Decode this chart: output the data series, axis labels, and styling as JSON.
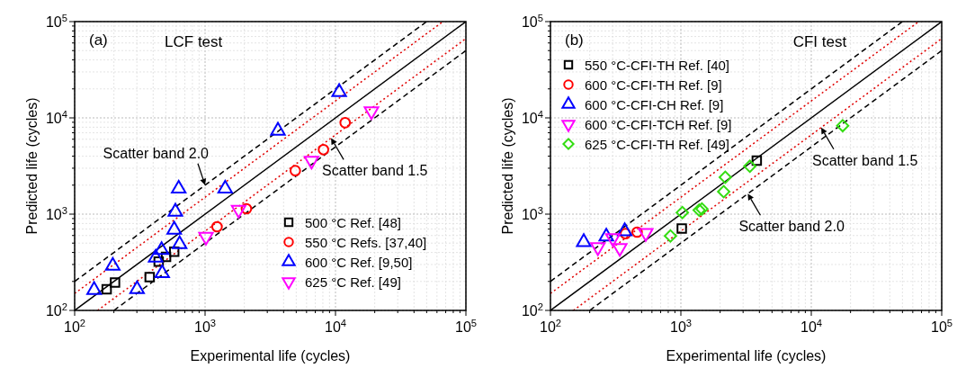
{
  "chart_data": [
    {
      "type": "scatter",
      "title": "LCF test",
      "xlabel": "Experimental life (cycles)",
      "ylabel": "Predicted life (cycles)",
      "log": "xy",
      "grid": true,
      "legend": "bottom right",
      "xlim": [
        100,
        100000
      ],
      "ylim": [
        100,
        100000
      ],
      "xticks": [
        {
          "value": 100,
          "label": "10$^{2}$"
        },
        {
          "value": 200,
          "label": null
        },
        {
          "value": 300,
          "label": null
        },
        {
          "value": 400,
          "label": null
        },
        {
          "value": 500,
          "label": null
        },
        {
          "value": 600,
          "label": null
        },
        {
          "value": 700,
          "label": null
        },
        {
          "value": 800,
          "label": null
        },
        {
          "value": 900,
          "label": null
        },
        {
          "value": 1000,
          "label": "10$^{3}$"
        },
        {
          "value": 2000,
          "label": null
        },
        {
          "value": 3000,
          "label": null
        },
        {
          "value": 4000,
          "label": null
        },
        {
          "value": 5000,
          "label": null
        },
        {
          "value": 6000,
          "label": null
        },
        {
          "value": 7000,
          "label": null
        },
        {
          "value": 8000,
          "label": null
        },
        {
          "value": 9000,
          "label": null
        },
        {
          "value": 10000,
          "label": "10$^{4}$"
        },
        {
          "value": 20000,
          "label": null
        },
        {
          "value": 30000,
          "label": null
        },
        {
          "value": 40000,
          "label": null
        },
        {
          "value": 50000,
          "label": null
        },
        {
          "value": 60000,
          "label": null
        },
        {
          "value": 70000,
          "label": null
        },
        {
          "value": 80000,
          "label": null
        },
        {
          "value": 90000,
          "label": null
        },
        {
          "value": 100000,
          "label": "10$^{5}$"
        }
      ],
      "yticks": [
        {
          "value": 100,
          "label": "10$^{2}$"
        },
        {
          "value": 200,
          "label": null
        },
        {
          "value": 300,
          "label": null
        },
        {
          "value": 400,
          "label": null
        },
        {
          "value": 500,
          "label": null
        },
        {
          "value": 600,
          "label": null
        },
        {
          "value": 700,
          "label": null
        },
        {
          "value": 800,
          "label": null
        },
        {
          "value": 900,
          "label": null
        },
        {
          "value": 1000,
          "label": "10$^{3}$"
        },
        {
          "value": 2000,
          "label": null
        },
        {
          "value": 3000,
          "label": null
        },
        {
          "value": 4000,
          "label": null
        },
        {
          "value": 5000,
          "label": null
        },
        {
          "value": 6000,
          "label": null
        },
        {
          "value": 7000,
          "label": null
        },
        {
          "value": 8000,
          "label": null
        },
        {
          "value": 9000,
          "label": null
        },
        {
          "value": 10000,
          "label": "10$^{4}$"
        },
        {
          "value": 20000,
          "label": null
        },
        {
          "value": 30000,
          "label": null
        },
        {
          "value": 40000,
          "label": null
        },
        {
          "value": 50000,
          "label": null
        },
        {
          "value": 60000,
          "label": null
        },
        {
          "value": 70000,
          "label": null
        },
        {
          "value": 80000,
          "label": null
        },
        {
          "value": 90000,
          "label": null
        },
        {
          "value": 100000,
          "label": "10$^{5}$"
        }
      ],
      "annotations": [
        "(a)",
        {
          "text": "Scatter band 2.0",
          "x": 1000,
          "y": 2000
        },
        {
          "text": "Scatter band 1.5",
          "x": 9250,
          "y": 6170
        }
      ],
      "series": [
        {
          "type": "line",
          "color": "#000000",
          "line_style": "solid",
          "marker": "none",
          "x": [
            100,
            100000
          ],
          "values": [
            100,
            100000
          ]
        },
        {
          "type": "line",
          "color": "#e00000",
          "line_style": "dotted",
          "marker": "none",
          "x": [
            100,
            66667
          ],
          "values": [
            150,
            100000
          ]
        },
        {
          "type": "line",
          "color": "#e00000",
          "line_style": "dotted",
          "marker": "none",
          "x": [
            150,
            100000
          ],
          "values": [
            100,
            66667
          ]
        },
        {
          "type": "line",
          "color": "#000000",
          "line_style": "dashed",
          "marker": "none",
          "x": [
            100,
            50000
          ],
          "values": [
            200,
            100000
          ]
        },
        {
          "type": "line",
          "color": "#000000",
          "line_style": "dashed",
          "marker": "none",
          "x": [
            200,
            100000
          ],
          "values": [
            100,
            50000
          ]
        },
        {
          "name": "500 °C Ref. [48]",
          "color": "#000000",
          "marker": "square",
          "x": [
            176,
            204,
            376,
            441,
            502,
            580
          ],
          "values": [
            166,
            195,
            222,
            322,
            359,
            408
          ]
        },
        {
          "name": "550 °C Refs. [37,40]",
          "color": "#ff0000",
          "marker": "circle",
          "x": [
            1236,
            2075,
            4920,
            8090,
            11860
          ],
          "values": [
            740,
            1138,
            2830,
            4680,
            8910
          ]
        },
        {
          "name": "600 °C Ref. [9,50]",
          "color": "#0000ff",
          "marker": "triangle",
          "x": [
            141,
            196,
            301,
            418,
            464,
            469,
            580,
            592,
            628,
            638,
            1426,
            3620,
            10670
          ],
          "values": [
            163,
            291,
            166,
            353,
            423,
            243,
            689,
            1059,
            1841,
            487,
            1841,
            7350,
            18530
          ]
        },
        {
          "name": "625 °C Ref. [49]",
          "color": "#ff00ff",
          "marker": "triangle-down",
          "x": [
            1016,
            1808,
            6550,
            18870
          ],
          "values": [
            584,
            1113,
            3590,
            11720
          ]
        }
      ]
    },
    {
      "type": "scatter",
      "title": "CFI test",
      "xlabel": "Experimental life (cycles)",
      "ylabel": "Predicted life (cycles)",
      "log": "xy",
      "grid": true,
      "legend": "top left",
      "xlim": [
        100,
        100000
      ],
      "ylim": [
        100,
        100000
      ],
      "xticks": [
        {
          "value": 100,
          "label": "10$^{2}$"
        },
        {
          "value": 200,
          "label": null
        },
        {
          "value": 300,
          "label": null
        },
        {
          "value": 400,
          "label": null
        },
        {
          "value": 500,
          "label": null
        },
        {
          "value": 600,
          "label": null
        },
        {
          "value": 700,
          "label": null
        },
        {
          "value": 800,
          "label": null
        },
        {
          "value": 900,
          "label": null
        },
        {
          "value": 1000,
          "label": "10$^{3}$"
        },
        {
          "value": 2000,
          "label": null
        },
        {
          "value": 3000,
          "label": null
        },
        {
          "value": 4000,
          "label": null
        },
        {
          "value": 5000,
          "label": null
        },
        {
          "value": 6000,
          "label": null
        },
        {
          "value": 7000,
          "label": null
        },
        {
          "value": 8000,
          "label": null
        },
        {
          "value": 9000,
          "label": null
        },
        {
          "value": 10000,
          "label": "10$^{4}$"
        },
        {
          "value": 20000,
          "label": null
        },
        {
          "value": 30000,
          "label": null
        },
        {
          "value": 40000,
          "label": null
        },
        {
          "value": 50000,
          "label": null
        },
        {
          "value": 60000,
          "label": null
        },
        {
          "value": 70000,
          "label": null
        },
        {
          "value": 80000,
          "label": null
        },
        {
          "value": 90000,
          "label": null
        },
        {
          "value": 100000,
          "label": "10$^{5}$"
        }
      ],
      "yticks": [
        {
          "value": 100,
          "label": "10$^{2}$"
        },
        {
          "value": 200,
          "label": null
        },
        {
          "value": 300,
          "label": null
        },
        {
          "value": 400,
          "label": null
        },
        {
          "value": 500,
          "label": null
        },
        {
          "value": 600,
          "label": null
        },
        {
          "value": 700,
          "label": null
        },
        {
          "value": 800,
          "label": null
        },
        {
          "value": 900,
          "label": null
        },
        {
          "value": 1000,
          "label": "10$^{3}$"
        },
        {
          "value": 2000,
          "label": null
        },
        {
          "value": 3000,
          "label": null
        },
        {
          "value": 4000,
          "label": null
        },
        {
          "value": 5000,
          "label": null
        },
        {
          "value": 6000,
          "label": null
        },
        {
          "value": 7000,
          "label": null
        },
        {
          "value": 8000,
          "label": null
        },
        {
          "value": 9000,
          "label": null
        },
        {
          "value": 10000,
          "label": "10$^{4}$"
        },
        {
          "value": 20000,
          "label": null
        },
        {
          "value": 30000,
          "label": null
        },
        {
          "value": 40000,
          "label": null
        },
        {
          "value": 50000,
          "label": null
        },
        {
          "value": 60000,
          "label": null
        },
        {
          "value": 70000,
          "label": null
        },
        {
          "value": 80000,
          "label": null
        },
        {
          "value": 90000,
          "label": null
        },
        {
          "value": 100000,
          "label": "10$^{5}$"
        }
      ],
      "annotations": [
        "(b)",
        {
          "text": "Scatter band 1.5",
          "x": 11900,
          "y": 7930
        },
        {
          "text": "Scatter band 2.0",
          "x": 3260,
          "y": 1630
        }
      ],
      "series": [
        {
          "type": "line",
          "color": "#000000",
          "line_style": "solid",
          "marker": "none",
          "x": [
            100,
            100000
          ],
          "values": [
            100,
            100000
          ]
        },
        {
          "type": "line",
          "color": "#e00000",
          "line_style": "dotted",
          "marker": "none",
          "x": [
            100,
            66667
          ],
          "values": [
            150,
            100000
          ]
        },
        {
          "type": "line",
          "color": "#e00000",
          "line_style": "dotted",
          "marker": "none",
          "x": [
            150,
            100000
          ],
          "values": [
            100,
            66667
          ]
        },
        {
          "type": "line",
          "color": "#000000",
          "line_style": "dashed",
          "marker": "none",
          "x": [
            100,
            50000
          ],
          "values": [
            200,
            100000
          ]
        },
        {
          "type": "line",
          "color": "#000000",
          "line_style": "dashed",
          "marker": "none",
          "x": [
            200,
            100000
          ],
          "values": [
            100,
            50000
          ]
        },
        {
          "name": "550 °C-CFI-TH Ref. [40]",
          "color": "#000000",
          "marker": "square",
          "x": [
            1016,
            3820
          ],
          "values": [
            708,
            3590
          ]
        },
        {
          "name": "600 °C-CFI-TH Ref. [9]",
          "color": "#ff0000",
          "marker": "circle",
          "x": [
            376,
            462
          ],
          "values": [
            627,
            650
          ]
        },
        {
          "name": "600 °C-CFI-CH Ref. [9]",
          "color": "#0000ff",
          "marker": "triangle",
          "x": [
            180,
            268,
            371
          ],
          "values": [
            513,
            584,
            664
          ]
        },
        {
          "name": "600 °C-CFI-TCH Ref. [9]",
          "color": "#ff00ff",
          "marker": "triangle-down",
          "x": [
            231,
            301,
            340,
            538
          ],
          "values": [
            454,
            563,
            445,
            637
          ]
        },
        {
          "name": "625 °C-CFI-TH Ref. [49]",
          "color": "#33dd11",
          "marker": "diamond",
          "x": [
            832,
            1026,
            1380,
            1450,
            2130,
            2190,
            3380,
            17400
          ],
          "values": [
            593,
            1038,
            1100,
            1130,
            1714,
            2415,
            3150,
            8300
          ]
        }
      ]
    }
  ]
}
